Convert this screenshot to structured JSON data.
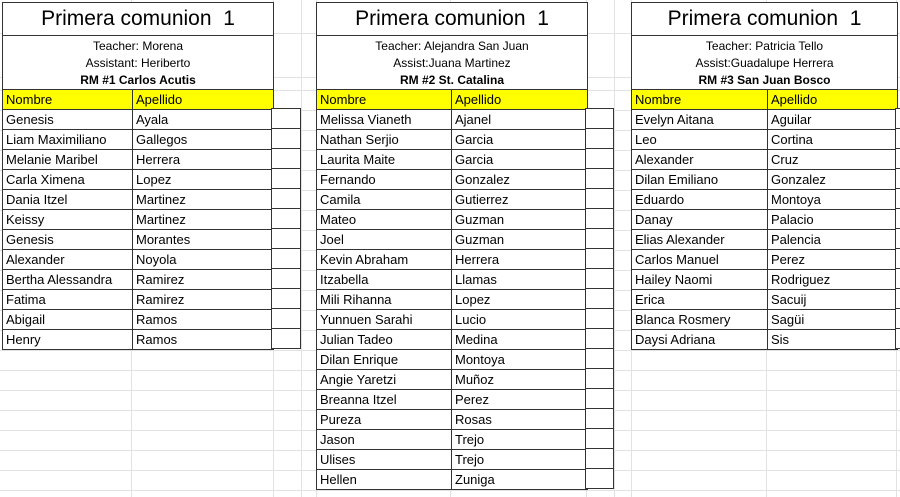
{
  "sheet": {
    "header_bg": "#ffff00",
    "table_border_color": "#333333",
    "gridline_color": "#e2e2e2"
  },
  "tables": [
    {
      "title": "Primera comunion  1",
      "info_lines": [
        "Teacher: Morena",
        "Assistant: Heriberto"
      ],
      "room_line": "RM #1 Carlos Acutis",
      "columns": [
        "Nombre",
        "Apellido"
      ],
      "rows": [
        [
          "Genesis",
          "Ayala"
        ],
        [
          "Liam Maximiliano",
          "Gallegos"
        ],
        [
          "Melanie Maribel",
          "Herrera"
        ],
        [
          "Carla Ximena",
          "Lopez"
        ],
        [
          "Dania Itzel",
          "Martinez"
        ],
        [
          "Keissy",
          "Martinez"
        ],
        [
          "Genesis",
          "Morantes"
        ],
        [
          "Alexander",
          "Noyola"
        ],
        [
          "Bertha Alessandra",
          "Ramirez"
        ],
        [
          "Fatima",
          "Ramirez"
        ],
        [
          "Abigail",
          "Ramos"
        ],
        [
          "Henry",
          "Ramos"
        ]
      ]
    },
    {
      "title": "Primera comunion  1",
      "info_lines": [
        "Teacher: Alejandra San Juan",
        "Assist:Juana Martinez"
      ],
      "room_line": "RM #2 St. Catalina",
      "columns": [
        "Nombre",
        "Apellido"
      ],
      "rows": [
        [
          "Melissa Vianeth",
          "Ajanel"
        ],
        [
          "Nathan Serjio",
          "Garcia"
        ],
        [
          "Laurita Maite",
          "Garcia"
        ],
        [
          "Fernando",
          "Gonzalez"
        ],
        [
          "Camila",
          "Gutierrez"
        ],
        [
          "Mateo",
          "Guzman"
        ],
        [
          "Joel",
          "Guzman"
        ],
        [
          "Kevin Abraham",
          "Herrera"
        ],
        [
          "Itzabella",
          "Llamas"
        ],
        [
          "Mili Rihanna",
          "Lopez"
        ],
        [
          "Yunnuen Sarahi",
          "Lucio"
        ],
        [
          "Julian Tadeo",
          "Medina"
        ],
        [
          "Dilan Enrique",
          "Montoya"
        ],
        [
          "Angie Yaretzi",
          "Muñoz"
        ],
        [
          "Breanna Itzel",
          "Perez"
        ],
        [
          "Pureza",
          "Rosas"
        ],
        [
          "Jason",
          "Trejo"
        ],
        [
          "Ulises",
          "Trejo"
        ],
        [
          "Hellen",
          "Zuniga"
        ]
      ]
    },
    {
      "title": "Primera comunion  1",
      "info_lines": [
        "Teacher: Patricia Tello",
        "Assist:Guadalupe Herrera"
      ],
      "room_line": "RM #3 San Juan Bosco",
      "columns": [
        "Nombre",
        "Apellido"
      ],
      "rows": [
        [
          "Evelyn Aitana",
          "Aguilar"
        ],
        [
          "Leo",
          "Cortina"
        ],
        [
          "Alexander",
          "Cruz"
        ],
        [
          "Dilan Emiliano",
          "Gonzalez"
        ],
        [
          "Eduardo",
          "Montoya"
        ],
        [
          "Danay",
          "Palacio"
        ],
        [
          "Elias Alexander",
          "Palencia"
        ],
        [
          "Carlos Manuel",
          "Perez"
        ],
        [
          "Hailey Naomi",
          "Rodriguez"
        ],
        [
          "Erica",
          "Sacuij"
        ],
        [
          "Blanca Rosmery",
          "Sagüi"
        ],
        [
          "Daysi Adriana",
          "Sis"
        ]
      ]
    }
  ]
}
